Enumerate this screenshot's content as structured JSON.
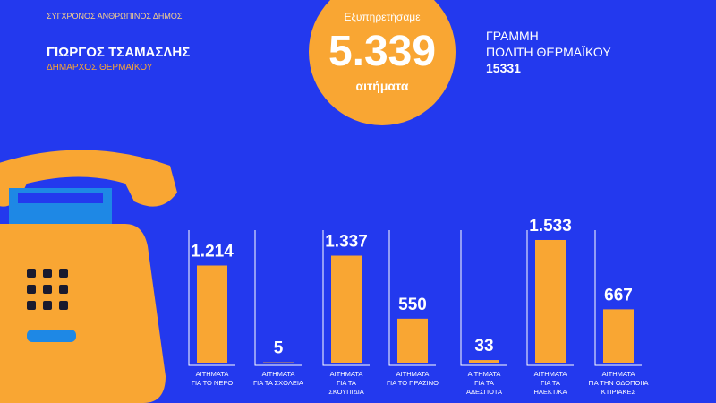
{
  "header": {
    "slogan": "ΣΥΓΧΡΟΝΟΣ ΑΝΘΡΩΠΙΝΟΣ ΔΗΜΟΣ",
    "name": "ΓΙΩΡΓΟΣ ΤΣΑΜΑΣΛΗΣ",
    "role": "ΔΗΜΑΡΧΟΣ ΘΕΡΜΑΪΚΟΥ"
  },
  "badge": {
    "top": "Εξυπηρετήσαμε",
    "total": "5.339",
    "bottom": "αιτήματα"
  },
  "hotline": {
    "line1": "ΓΡΑΜΜΗ",
    "line2": "ΠΟΛΙΤΗ ΘΕΡΜΑΪΚΟΥ",
    "number": "15331"
  },
  "chart_data": {
    "type": "bar",
    "categories": [
      "ΑΙΤΗΜΑΤΑ\nΓΙΑ ΤΟ ΝΕΡΟ",
      "ΑΙΤΗΜΑΤΑ\nΓΙΑ ΤΑ ΣΧΟΛΕΙΑ",
      "ΑΙΤΗΜΑΤΑ\nΓΙΑ ΤΑ\nΣΚΟΥΠΙΔΙΑ",
      "ΑΙΤΗΜΑΤΑ\nΓΙΑ ΤΟ ΠΡΑΣΙΝΟ",
      "ΑΙΤΗΜΑΤΑ\nΓΙΑ ΤΑ\nΑΔΕΣΠΟΤΑ",
      "ΑΙΤΗΜΑΤΑ\nΓΙΑ ΤΑ\nΗΛΕΚΤ/ΚΑ",
      "ΑΙΤΗΜΑΤΑ\nΓΙΑ ΤΗΝ ΟΔΟΠΟΙΙΑ\nΚΤΙΡΙΑΚΕΣ"
    ],
    "values": [
      1214,
      5,
      1337,
      550,
      33,
      1533,
      667
    ],
    "value_labels": [
      "1.214",
      "5",
      "1.337",
      "550",
      "33",
      "1.533",
      "667"
    ],
    "color": "#f9a633",
    "ylim": [
      0,
      1600
    ]
  }
}
